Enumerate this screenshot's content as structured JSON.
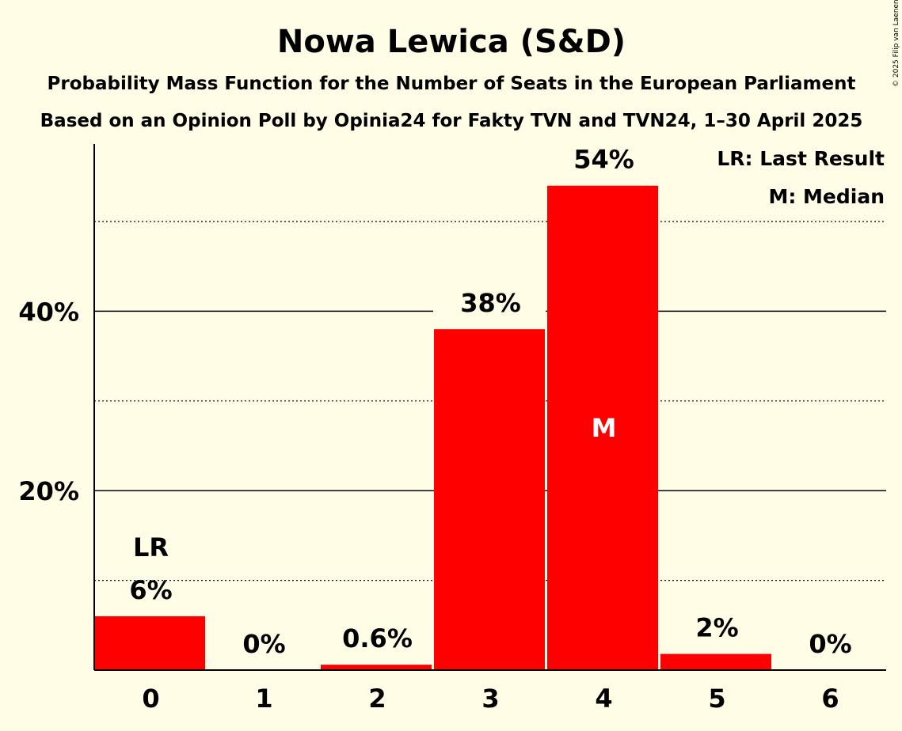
{
  "chart_data": {
    "type": "bar",
    "title": "Nowa Lewica (S&D)",
    "subtitle1": "Probability Mass Function for the Number of Seats in the European Parliament",
    "subtitle2": "Based on an Opinion Poll by Opinia24 for Fakty TVN and TVN24, 1–30 April 2025",
    "copyright": "© 2025 Filip van Laenen",
    "categories": [
      "0",
      "1",
      "2",
      "3",
      "4",
      "5",
      "6"
    ],
    "values": [
      6.0,
      0.0,
      0.6,
      38.0,
      54.0,
      1.8,
      0.0
    ],
    "value_labels": [
      "6%",
      "0%",
      "0.6%",
      "38%",
      "54%",
      "2%",
      "0%"
    ],
    "ylim": [
      0,
      59
    ],
    "yticks": [
      {
        "value": 20,
        "label": "20%",
        "style": "solid"
      },
      {
        "value": 40,
        "label": "40%",
        "style": "solid"
      }
    ],
    "minor_gridlines": [
      10,
      30,
      50
    ],
    "bar_color": "#ff0000",
    "last_result": {
      "category": "0",
      "marker": "LR"
    },
    "median": {
      "category": "4",
      "marker": "M"
    },
    "legend": {
      "placement": "top-right",
      "lines": [
        "LR: Last Result",
        "M: Median"
      ]
    }
  }
}
